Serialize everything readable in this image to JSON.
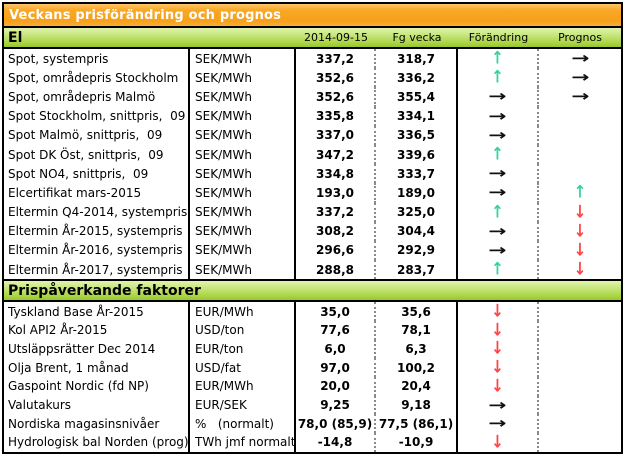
{
  "title": "Veckans prisförändring och prognos",
  "columns": {
    "date": "2014-09-15",
    "prev": "Fg vecka",
    "change": "Förändring",
    "forecast": "Prognos"
  },
  "arrows": {
    "up": "↑",
    "down": "↓",
    "flat": "→",
    "none": ""
  },
  "colors": {
    "header_orange": "#f8a623",
    "section_green": "#a8d340",
    "up_arrow": "#35d39e",
    "down_arrow": "#ff4343",
    "flat_arrow": "#111111"
  },
  "sections": [
    {
      "name": "El",
      "rows": [
        {
          "label": "Spot, systempris",
          "unit": "SEK/MWh",
          "current": "337,2",
          "previous": "318,7",
          "change": "up",
          "forecast": "flat"
        },
        {
          "label": "Spot, områdepris Stockholm",
          "unit": "SEK/MWh",
          "current": "352,6",
          "previous": "336,2",
          "change": "up",
          "forecast": "flat"
        },
        {
          "label": "Spot, områdepris Malmö",
          "unit": "SEK/MWh",
          "current": "352,6",
          "previous": "355,4",
          "change": "flat",
          "forecast": "flat"
        },
        {
          "label": "Spot Stockholm, snittpris,  09",
          "unit": "SEK/MWh",
          "current": "335,8",
          "previous": "334,1",
          "change": "flat",
          "forecast": "none"
        },
        {
          "label": "Spot Malmö, snittpris,  09",
          "unit": "SEK/MWh",
          "current": "337,0",
          "previous": "336,5",
          "change": "flat",
          "forecast": "none"
        },
        {
          "label": "Spot DK Öst, snittpris,  09",
          "unit": "SEK/MWh",
          "current": "347,2",
          "previous": "339,6",
          "change": "up",
          "forecast": "none"
        },
        {
          "label": "Spot NO4, snittpris,  09",
          "unit": "SEK/MWh",
          "current": "334,8",
          "previous": "333,7",
          "change": "flat",
          "forecast": "none"
        },
        {
          "label": "Elcertifikat mars-2015",
          "unit": "SEK/MWh",
          "current": "193,0",
          "previous": "189,0",
          "change": "flat",
          "forecast": "up"
        },
        {
          "label": "Eltermin Q4-2014, systempris",
          "unit": "SEK/MWh",
          "current": "337,2",
          "previous": "325,0",
          "change": "up",
          "forecast": "down"
        },
        {
          "label": "Eltermin År-2015, systempris",
          "unit": "SEK/MWh",
          "current": "308,2",
          "previous": "304,4",
          "change": "flat",
          "forecast": "down"
        },
        {
          "label": "Eltermin År-2016, systempris",
          "unit": "SEK/MWh",
          "current": "296,6",
          "previous": "292,9",
          "change": "flat",
          "forecast": "down"
        },
        {
          "label": "Eltermin År-2017, systempris",
          "unit": "SEK/MWh",
          "current": "288,8",
          "previous": "283,7",
          "change": "up",
          "forecast": "down"
        }
      ]
    },
    {
      "name": "Prispåverkande faktorer",
      "rows": [
        {
          "label": "Tyskland Base År-2015",
          "unit": "EUR/MWh",
          "current": "35,0",
          "previous": "35,6",
          "change": "down",
          "forecast": "none"
        },
        {
          "label": "Kol API2 År-2015",
          "unit": "USD/ton",
          "current": "77,6",
          "previous": "78,1",
          "change": "down",
          "forecast": "none"
        },
        {
          "label": "Utsläppsrätter Dec 2014",
          "unit": "EUR/ton",
          "current": "6,0",
          "previous": "6,3",
          "change": "down",
          "forecast": "none"
        },
        {
          "label": "Olja Brent, 1 månad",
          "unit": "USD/fat",
          "current": "97,0",
          "previous": "100,2",
          "change": "down",
          "forecast": "none"
        },
        {
          "label": "Gaspoint Nordic (fd NP)",
          "unit": "EUR/MWh",
          "current": "20,0",
          "previous": "20,4",
          "change": "down",
          "forecast": "none"
        },
        {
          "label": "Valutakurs",
          "unit": "EUR/SEK",
          "current": "9,25",
          "previous": "9,18",
          "change": "flat",
          "forecast": "none"
        },
        {
          "label": "Nordiska magasinsnivåer",
          "unit": "%   (normalt)",
          "current": "78,0 (85,9)",
          "previous": "77,5 (86,1)",
          "change": "flat",
          "forecast": "none"
        },
        {
          "label": "Hydrologisk bal Norden (prog)",
          "unit": "TWh jmf normalt",
          "current": "-14,8",
          "previous": "-10,9",
          "change": "down",
          "forecast": "none"
        }
      ]
    }
  ]
}
